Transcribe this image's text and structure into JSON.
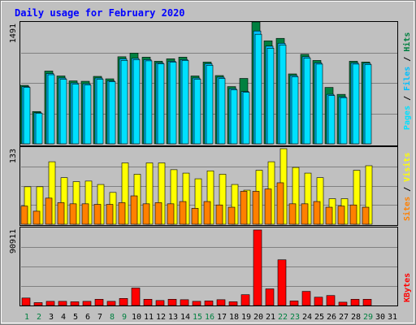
{
  "title": "Daily usage for February 2020",
  "colors": {
    "background": "#c0c0c0",
    "plot_bg": "#c0c0c0",
    "grid": "#808080",
    "title": "#0000ff",
    "hits": "#008040",
    "files": "#00c0ff",
    "pages": "#00e0ff",
    "visits": "#ffff00",
    "sites": "#ff8000",
    "kbytes": "#ff0000",
    "weekday_label": "#000000",
    "weekend_label": "#00804000"
  },
  "chart_data": [
    {
      "type": "bar",
      "panel": "hits-files-pages",
      "categories": [
        "1",
        "2",
        "3",
        "4",
        "5",
        "6",
        "7",
        "8",
        "9",
        "10",
        "11",
        "12",
        "13",
        "14",
        "15",
        "16",
        "17",
        "18",
        "19",
        "20",
        "21",
        "22",
        "23",
        "24",
        "25",
        "26",
        "27",
        "28",
        "29",
        "30",
        "31"
      ],
      "weekend_days": [
        "1",
        "2",
        "8",
        "9",
        "15",
        "16",
        "22",
        "23",
        "29"
      ],
      "ymax_label": "1491",
      "ylim": [
        0,
        1491
      ],
      "right_labels": [
        "Pages",
        "Files",
        "Hits"
      ],
      "series": [
        {
          "name": "Hits",
          "values": [
            715,
            395,
            890,
            830,
            770,
            765,
            825,
            795,
            1065,
            1110,
            1060,
            1010,
            1040,
            1060,
            830,
            1000,
            835,
            700,
            800,
            1491,
            1260,
            1290,
            855,
            1095,
            1020,
            690,
            605,
            1010,
            1000,
            0,
            0
          ]
        },
        {
          "name": "Files",
          "values": [
            700,
            380,
            860,
            805,
            745,
            735,
            805,
            770,
            1040,
            1045,
            1030,
            990,
            1010,
            1030,
            805,
            980,
            815,
            675,
            640,
            1380,
            1195,
            1230,
            835,
            1065,
            990,
            605,
            575,
            990,
            985,
            0,
            0
          ]
        },
        {
          "name": "Pages",
          "values": [
            690,
            375,
            845,
            790,
            730,
            720,
            790,
            760,
            1020,
            1030,
            1015,
            980,
            1000,
            1020,
            790,
            960,
            800,
            660,
            630,
            1340,
            1170,
            1210,
            820,
            1050,
            975,
            590,
            565,
            975,
            970,
            0,
            0
          ]
        }
      ]
    },
    {
      "type": "bar",
      "panel": "visits-sites",
      "categories": [
        "1",
        "2",
        "3",
        "4",
        "5",
        "6",
        "7",
        "8",
        "9",
        "10",
        "11",
        "12",
        "13",
        "14",
        "15",
        "16",
        "17",
        "18",
        "19",
        "20",
        "21",
        "22",
        "23",
        "24",
        "25",
        "26",
        "27",
        "28",
        "29",
        "30",
        "31"
      ],
      "ymax_label": "133",
      "ylim": [
        0,
        133
      ],
      "right_labels": [
        "Sites",
        "Visits"
      ],
      "series": [
        {
          "name": "Visits",
          "values": [
            66,
            66,
            110,
            82,
            75,
            76,
            70,
            56,
            108,
            88,
            108,
            108,
            96,
            90,
            80,
            94,
            88,
            70,
            60,
            95,
            110,
            133,
            100,
            90,
            82,
            45,
            45,
            95,
            103,
            0,
            0
          ]
        },
        {
          "name": "Sites",
          "values": [
            32,
            23,
            46,
            38,
            36,
            36,
            35,
            35,
            38,
            50,
            36,
            38,
            36,
            40,
            28,
            40,
            34,
            30,
            58,
            58,
            62,
            73,
            36,
            36,
            40,
            30,
            32,
            34,
            30,
            0,
            0
          ]
        }
      ]
    },
    {
      "type": "bar",
      "panel": "kbytes",
      "categories": [
        "1",
        "2",
        "3",
        "4",
        "5",
        "6",
        "7",
        "8",
        "9",
        "10",
        "11",
        "12",
        "13",
        "14",
        "15",
        "16",
        "17",
        "18",
        "19",
        "20",
        "21",
        "22",
        "23",
        "24",
        "25",
        "26",
        "27",
        "28",
        "29",
        "30",
        "31"
      ],
      "ymax_label": "90911",
      "ylim": [
        0,
        90911
      ],
      "right_labels": [
        "KBytes"
      ],
      "series": [
        {
          "name": "KBytes",
          "values": [
            9000,
            3500,
            5000,
            5000,
            4500,
            5000,
            7500,
            5000,
            8500,
            21000,
            7500,
            6000,
            7500,
            7000,
            5000,
            5500,
            7000,
            4500,
            13000,
            90911,
            20000,
            55000,
            5500,
            17000,
            10000,
            12000,
            4000,
            7500,
            7500,
            0,
            0
          ]
        }
      ]
    }
  ]
}
